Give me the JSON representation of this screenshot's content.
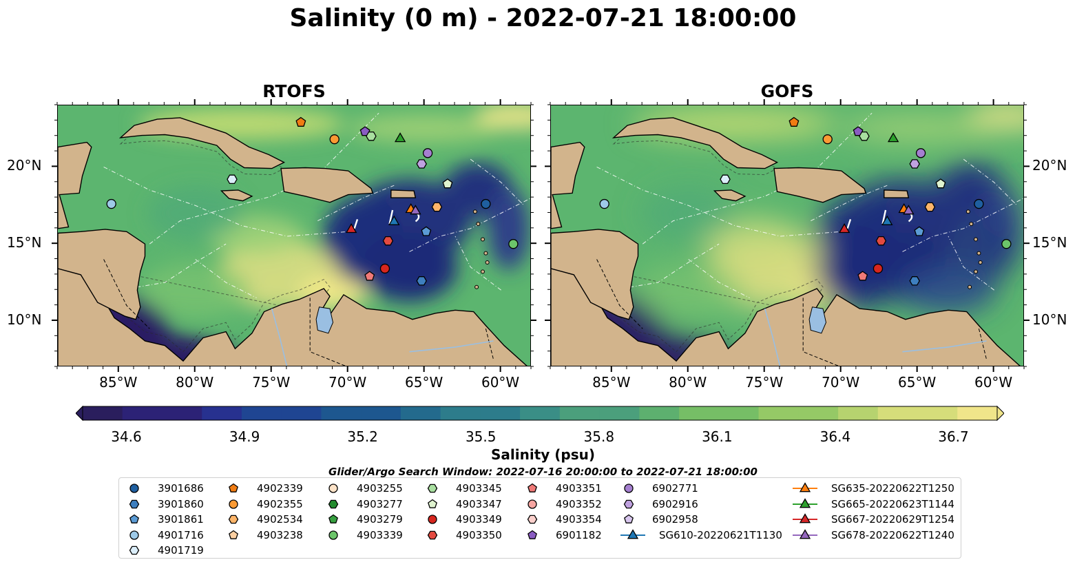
{
  "title": "Salinity (0 m) - 2022-07-21 18:00:00",
  "panels": [
    {
      "name": "RTOFS"
    },
    {
      "name": "GOFS"
    }
  ],
  "axes": {
    "lon_ticks": [
      "85°W",
      "80°W",
      "75°W",
      "70°W",
      "65°W",
      "60°W"
    ],
    "lat_ticks": [
      "20°N",
      "15°N",
      "10°N"
    ]
  },
  "colorbar": {
    "label": "Salinity (psu)",
    "ticks": [
      "34.6",
      "34.9",
      "35.2",
      "35.5",
      "35.8",
      "36.1",
      "36.4",
      "36.7"
    ],
    "min": 34.6,
    "max": 36.7,
    "extend": "both",
    "colormap": "haline"
  },
  "search_window": "Glider/Argo Search Window: 2022-07-16 20:00:00 to 2022-07-21 18:00:00",
  "legend_entries": [
    {
      "label": "3901686",
      "marker": "circle",
      "color": "#1f5fa0"
    },
    {
      "label": "3901860",
      "marker": "hexagon",
      "color": "#3e7fbf"
    },
    {
      "label": "3901861",
      "marker": "pentagon",
      "color": "#5b9bd5"
    },
    {
      "label": "4901716",
      "marker": "circle",
      "color": "#9ecae8"
    },
    {
      "label": "4901719",
      "marker": "hexagon",
      "color": "#dbeefa"
    },
    {
      "label": "4902339",
      "marker": "pentagon",
      "color": "#f07c13"
    },
    {
      "label": "4902355",
      "marker": "circle",
      "color": "#fb9a33"
    },
    {
      "label": "4902534",
      "marker": "hexagon",
      "color": "#fdb56a"
    },
    {
      "label": "4903238",
      "marker": "pentagon",
      "color": "#fdd0a2"
    },
    {
      "label": "4903255",
      "marker": "circle",
      "color": "#fde3c8"
    },
    {
      "label": "4903277",
      "marker": "hexagon",
      "color": "#238b2e"
    },
    {
      "label": "4903279",
      "marker": "pentagon",
      "color": "#37a040"
    },
    {
      "label": "4903339",
      "marker": "circle",
      "color": "#6cc56a"
    },
    {
      "label": "4903345",
      "marker": "hexagon",
      "color": "#a9dfa0"
    },
    {
      "label": "4903347",
      "marker": "pentagon",
      "color": "#dff3cf"
    },
    {
      "label": "4903349",
      "marker": "circle",
      "color": "#d7261e"
    },
    {
      "label": "4903350",
      "marker": "hexagon",
      "color": "#e34a40"
    },
    {
      "label": "4903351",
      "marker": "pentagon",
      "color": "#f07a78"
    },
    {
      "label": "4903352",
      "marker": "circle",
      "color": "#f7a6a2"
    },
    {
      "label": "4903354",
      "marker": "hexagon",
      "color": "#fbd0cc"
    },
    {
      "label": "6901182",
      "marker": "pentagon",
      "color": "#8a5cc2"
    },
    {
      "label": "6902771",
      "marker": "circle",
      "color": "#a57fd0"
    },
    {
      "label": "6902916",
      "marker": "hexagon",
      "color": "#c0a2e0"
    },
    {
      "label": "6902958",
      "marker": "pentagon",
      "color": "#d8c6ee"
    },
    {
      "label": "SG610-20220621T1130",
      "marker": "triangle",
      "color": "#1f77b4",
      "glider": true
    },
    {
      "label": "SG635-20220622T1250",
      "marker": "triangle",
      "color": "#ff7f0e",
      "glider": true
    },
    {
      "label": "SG665-20220623T1144",
      "marker": "triangle",
      "color": "#2ca02c",
      "glider": true
    },
    {
      "label": "SG667-20220629T1254",
      "marker": "triangle",
      "color": "#d62728",
      "glider": true
    },
    {
      "label": "SG678-20220622T1240",
      "marker": "triangle",
      "color": "#9467bd",
      "glider": true
    }
  ],
  "chart_data": {
    "type": "heatmap",
    "title": "Salinity (0 m) - 2022-07-21 18:00:00",
    "variable": "salinity",
    "units": "psu",
    "depth_m": 0,
    "time": "2022-07-21 18:00:00",
    "panels": [
      "RTOFS",
      "GOFS"
    ],
    "lon_range": [
      -89,
      -58
    ],
    "lat_range": [
      7,
      24
    ],
    "x_ticks": [
      -85,
      -80,
      -75,
      -70,
      -65,
      -60
    ],
    "y_ticks": [
      20,
      15,
      10
    ],
    "colorbar_range": [
      34.6,
      36.7
    ],
    "land_color": "#d2b48c",
    "ocean_colormap": "haline",
    "contours": {
      "isobaths": [
        -100,
        -1000
      ],
      "style": "dashed"
    },
    "markers": [
      {
        "id": "4902339",
        "lon": -73.1,
        "lat": 22.9,
        "marker": "pentagon",
        "color": "#f07c13"
      },
      {
        "id": "4902355",
        "lon": -70.9,
        "lat": 21.8,
        "marker": "circle",
        "color": "#fb9a33"
      },
      {
        "id": "6901182",
        "lon": -68.9,
        "lat": 22.3,
        "marker": "pentagon",
        "color": "#8a5cc2"
      },
      {
        "id": "4903345",
        "lon": -68.5,
        "lat": 22.0,
        "marker": "hexagon",
        "color": "#a9dfa0"
      },
      {
        "id": "6902771",
        "lon": -64.8,
        "lat": 20.9,
        "marker": "circle",
        "color": "#a57fd0"
      },
      {
        "id": "6902916",
        "lon": -65.2,
        "lat": 20.2,
        "marker": "hexagon",
        "color": "#c0a2e0"
      },
      {
        "id": "4903347",
        "lon": -63.5,
        "lat": 18.9,
        "marker": "pentagon",
        "color": "#dff3cf"
      },
      {
        "id": "4901719",
        "lon": -77.6,
        "lat": 19.2,
        "marker": "hexagon",
        "color": "#dbeefa"
      },
      {
        "id": "4901716",
        "lon": -85.5,
        "lat": 17.6,
        "marker": "circle",
        "color": "#9ecae8"
      },
      {
        "id": "3901686",
        "lon": -61.0,
        "lat": 17.6,
        "marker": "circle",
        "color": "#1f5fa0"
      },
      {
        "id": "4902534",
        "lon": -64.2,
        "lat": 17.4,
        "marker": "hexagon",
        "color": "#fdb56a"
      },
      {
        "id": "3901861",
        "lon": -64.9,
        "lat": 15.8,
        "marker": "pentagon",
        "color": "#5b9bd5"
      },
      {
        "id": "4903339",
        "lon": -59.2,
        "lat": 15.0,
        "marker": "circle",
        "color": "#6cc56a"
      },
      {
        "id": "4903350",
        "lon": -67.4,
        "lat": 15.2,
        "marker": "hexagon",
        "color": "#e34a40"
      },
      {
        "id": "4903349",
        "lon": -67.6,
        "lat": 13.4,
        "marker": "circle",
        "color": "#d7261e"
      },
      {
        "id": "4903351",
        "lon": -68.6,
        "lat": 12.9,
        "marker": "pentagon",
        "color": "#f07a78"
      },
      {
        "id": "3901860",
        "lon": -65.2,
        "lat": 12.6,
        "marker": "hexagon",
        "color": "#3e7fbf"
      },
      {
        "id": "SG665-20220623T1144",
        "lon": -66.6,
        "lat": 21.9,
        "marker": "triangle",
        "color": "#2ca02c"
      },
      {
        "id": "SG635-20220622T1250",
        "lon": -65.9,
        "lat": 17.3,
        "marker": "triangle",
        "color": "#ff7f0e"
      },
      {
        "id": "SG678-20220622T1240",
        "lon": -65.6,
        "lat": 17.2,
        "marker": "triangle",
        "color": "#9467bd"
      },
      {
        "id": "SG610-20220621T1130",
        "lon": -67.0,
        "lat": 16.5,
        "marker": "triangle",
        "color": "#1f77b4"
      },
      {
        "id": "SG667-20220629T1254",
        "lon": -69.8,
        "lat": 16.0,
        "marker": "triangle",
        "color": "#d62728"
      }
    ]
  }
}
